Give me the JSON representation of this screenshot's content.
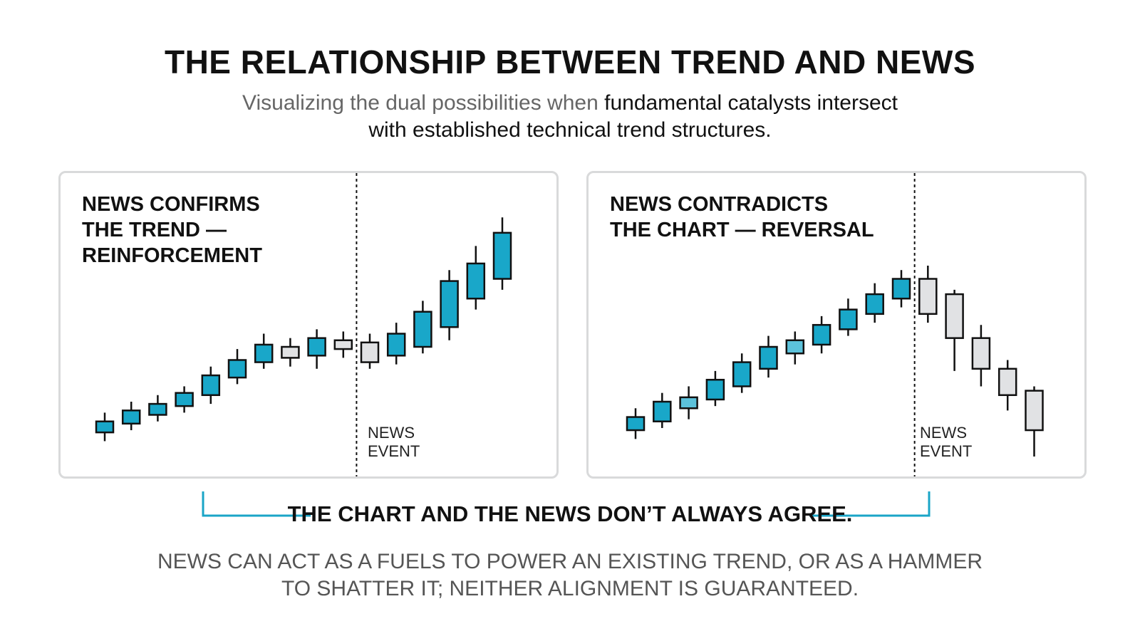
{
  "header": {
    "title": "THE RELATIONSHIP BETWEEN TREND AND NEWS",
    "subtitle_light": "Visualizing the dual possibilities when ",
    "subtitle_dark_1": "fundamental catalysts intersect",
    "subtitle_dark_2": "with established technical trend structures."
  },
  "colors": {
    "bullish": "#19a7c9",
    "bullish_light": "#5cc2db",
    "neutral": "#e1e2e4",
    "accent": "#1aa5c7",
    "border": "#d9dadb"
  },
  "chart_data": [
    {
      "type": "candlestick",
      "title": "NEWS CONFIRMS\nTHE TREND —\nREINFORCEMENT",
      "event_label": "NEWS\nEVENT",
      "event_after_index": 9,
      "ylim": [
        0,
        100
      ],
      "candles": [
        {
          "o": 11,
          "c": 16,
          "h": 20,
          "l": 7,
          "color": "bullish"
        },
        {
          "o": 15,
          "c": 21,
          "h": 25,
          "l": 12,
          "color": "bullish"
        },
        {
          "o": 19,
          "c": 24,
          "h": 28,
          "l": 16,
          "color": "bullish"
        },
        {
          "o": 23,
          "c": 29,
          "h": 32,
          "l": 20,
          "color": "bullish"
        },
        {
          "o": 28,
          "c": 37,
          "h": 41,
          "l": 24,
          "color": "bullish"
        },
        {
          "o": 36,
          "c": 44,
          "h": 49,
          "l": 33,
          "color": "bullish"
        },
        {
          "o": 43,
          "c": 51,
          "h": 56,
          "l": 40,
          "color": "bullish"
        },
        {
          "o": 45,
          "c": 50,
          "h": 54,
          "l": 41,
          "color": "neutral"
        },
        {
          "o": 46,
          "c": 54,
          "h": 58,
          "l": 40,
          "color": "bullish"
        },
        {
          "o": 49,
          "c": 53,
          "h": 57,
          "l": 45,
          "color": "neutral"
        },
        {
          "o": 43,
          "c": 52,
          "h": 56,
          "l": 40,
          "color": "neutral"
        },
        {
          "o": 46,
          "c": 56,
          "h": 61,
          "l": 42,
          "color": "bullish"
        },
        {
          "o": 50,
          "c": 66,
          "h": 71,
          "l": 47,
          "color": "bullish"
        },
        {
          "o": 59,
          "c": 80,
          "h": 85,
          "l": 53,
          "color": "bullish"
        },
        {
          "o": 72,
          "c": 88,
          "h": 96,
          "l": 67,
          "color": "bullish"
        },
        {
          "o": 81,
          "c": 102,
          "h": 109,
          "l": 76,
          "color": "bullish"
        }
      ]
    },
    {
      "type": "candlestick",
      "title": "NEWS CONTRADICTS\nTHE CHART — REVERSAL",
      "event_label": "NEWS\nEVENT",
      "event_after_index": 10,
      "ylim": [
        0,
        100
      ],
      "candles": [
        {
          "o": 12,
          "c": 18,
          "h": 22,
          "l": 8,
          "color": "bullish"
        },
        {
          "o": 16,
          "c": 25,
          "h": 29,
          "l": 13,
          "color": "bullish"
        },
        {
          "o": 22,
          "c": 27,
          "h": 32,
          "l": 17,
          "color": "bullish_light"
        },
        {
          "o": 26,
          "c": 35,
          "h": 39,
          "l": 23,
          "color": "bullish"
        },
        {
          "o": 32,
          "c": 43,
          "h": 47,
          "l": 29,
          "color": "bullish"
        },
        {
          "o": 40,
          "c": 50,
          "h": 55,
          "l": 36,
          "color": "bullish"
        },
        {
          "o": 47,
          "c": 53,
          "h": 57,
          "l": 42,
          "color": "bullish_light"
        },
        {
          "o": 51,
          "c": 60,
          "h": 64,
          "l": 47,
          "color": "bullish"
        },
        {
          "o": 58,
          "c": 67,
          "h": 72,
          "l": 55,
          "color": "bullish"
        },
        {
          "o": 65,
          "c": 74,
          "h": 79,
          "l": 61,
          "color": "bullish"
        },
        {
          "o": 72,
          "c": 81,
          "h": 85,
          "l": 68,
          "color": "bullish"
        },
        {
          "o": 81,
          "c": 65,
          "h": 87,
          "l": 61,
          "color": "neutral"
        },
        {
          "o": 74,
          "c": 54,
          "h": 76,
          "l": 39,
          "color": "neutral"
        },
        {
          "o": 54,
          "c": 40,
          "h": 60,
          "l": 32,
          "color": "neutral"
        },
        {
          "o": 40,
          "c": 28,
          "h": 44,
          "l": 21,
          "color": "neutral"
        },
        {
          "o": 30,
          "c": 12,
          "h": 32,
          "l": 0,
          "color": "neutral"
        }
      ]
    }
  ],
  "bracket_text": "THE CHART AND THE NEWS DON’T ALWAYS AGREE.",
  "footer": {
    "line1": "NEWS CAN ACT AS A FUELS TO POWER AN EXISTING TREND, OR AS A HAMMER",
    "line2": "TO SHATTER IT; NEITHER ALIGNMENT IS GUARANTEED."
  }
}
